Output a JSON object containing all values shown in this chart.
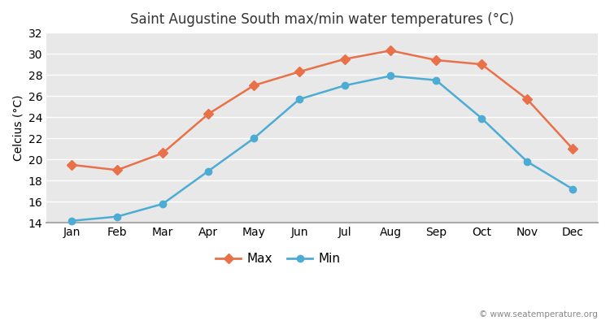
{
  "title": "Saint Augustine South max/min water temperatures (°C)",
  "ylabel": "Celcius (°C)",
  "months": [
    "Jan",
    "Feb",
    "Mar",
    "Apr",
    "May",
    "Jun",
    "Jul",
    "Aug",
    "Sep",
    "Oct",
    "Nov",
    "Dec"
  ],
  "max_temps": [
    19.5,
    19.0,
    20.6,
    24.3,
    27.0,
    28.3,
    29.5,
    30.3,
    29.4,
    29.0,
    25.7,
    21.0
  ],
  "min_temps": [
    14.2,
    14.6,
    15.8,
    18.9,
    22.0,
    25.7,
    27.0,
    27.9,
    27.5,
    23.9,
    19.8,
    17.2
  ],
  "max_color": "#e8714a",
  "min_color": "#4dacd4",
  "fig_bg_color": "#ffffff",
  "plot_bg_color": "#e8e8e8",
  "ylim": [
    14,
    32
  ],
  "yticks": [
    14,
    16,
    18,
    20,
    22,
    24,
    26,
    28,
    30,
    32
  ],
  "watermark": "© www.seatemperature.org",
  "title_fontsize": 12,
  "legend_labels": [
    "Max",
    "Min"
  ]
}
